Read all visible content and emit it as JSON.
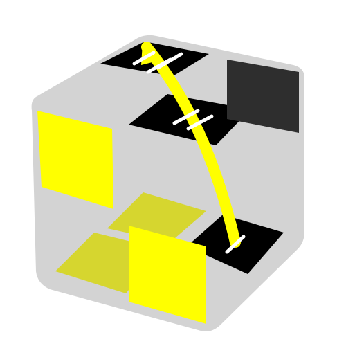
{
  "colors": {
    "background": "#ffffff",
    "cube_face": "#d3d3d3",
    "tile_black": "#000000",
    "tile_dark_gray": "#2e2e2e",
    "tile_yellow": "#ffff00",
    "tile_olive_yellow": "#d6d62f",
    "arrow_yellow": "#ffff00",
    "tick_white": "#ffffff"
  },
  "icons": {
    "cube": "isometric-cube",
    "arrow": "curved-arrow",
    "ticks": "double-tick-marks"
  }
}
